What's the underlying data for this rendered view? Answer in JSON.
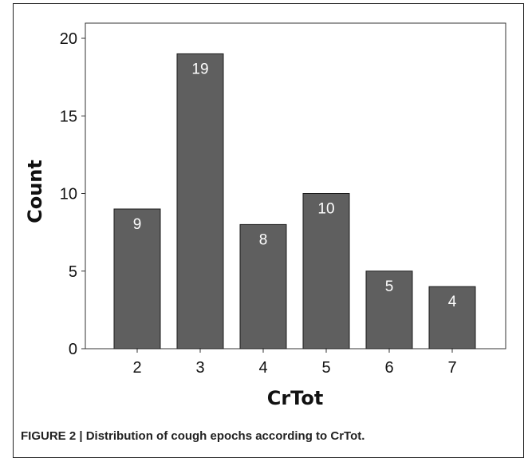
{
  "chart_data": {
    "type": "bar",
    "categories": [
      "2",
      "3",
      "4",
      "5",
      "6",
      "7"
    ],
    "values": [
      9,
      19,
      8,
      10,
      5,
      4
    ],
    "data_labels": [
      "9",
      "19",
      "8",
      "10",
      "5",
      "4"
    ],
    "xlabel": "CrTot",
    "ylabel": "Count",
    "ylim": [
      0,
      20
    ],
    "yticks": [
      "0",
      "5",
      "10",
      "15",
      "20"
    ],
    "grid": false,
    "bar_color": "#5f5f5f",
    "label_color": "#ffffff"
  },
  "caption": "FIGURE 2 | Distribution of cough epochs according to CrTot."
}
